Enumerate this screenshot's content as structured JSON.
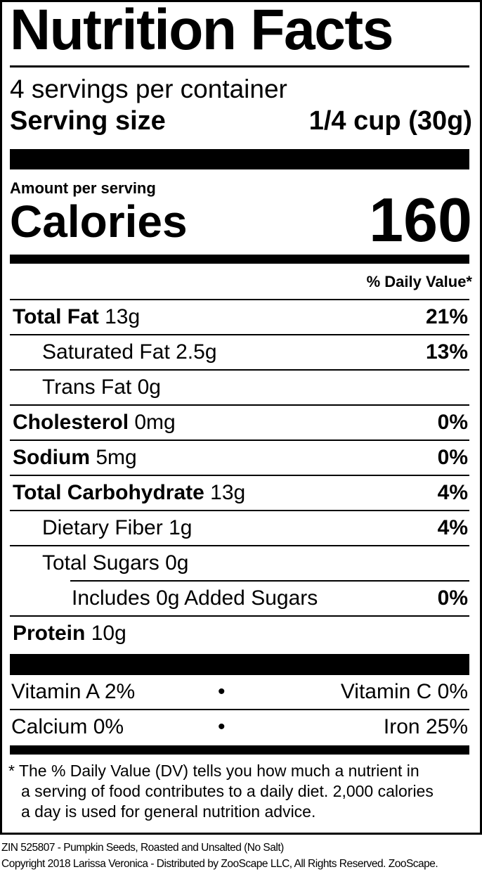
{
  "title": "Nutrition Facts",
  "servings_per_container": "4 servings per container",
  "serving_size": {
    "label": "Serving size",
    "value": "1/4 cup (30g)"
  },
  "amount_per_serving": "Amount per serving",
  "calories": {
    "label": "Calories",
    "value": "160"
  },
  "daily_value_header": "% Daily Value*",
  "nutrients": [
    {
      "name": "Total Fat",
      "amount": "13g",
      "dv": "21%",
      "bold": true,
      "indent": 0
    },
    {
      "name": "Saturated Fat",
      "amount": "2.5g",
      "dv": "13%",
      "bold": false,
      "indent": 1
    },
    {
      "name": "Trans Fat",
      "amount": "0g",
      "dv": "",
      "bold": false,
      "indent": 1
    },
    {
      "name": "Cholesterol",
      "amount": "0mg",
      "dv": "0%",
      "bold": true,
      "indent": 0
    },
    {
      "name": "Sodium",
      "amount": "5mg",
      "dv": "0%",
      "bold": true,
      "indent": 0
    },
    {
      "name": "Total Carbohydrate",
      "amount": "13g",
      "dv": "4%",
      "bold": true,
      "indent": 0
    },
    {
      "name": "Dietary Fiber",
      "amount": "1g",
      "dv": "4%",
      "bold": false,
      "indent": 1
    },
    {
      "name": "Total Sugars",
      "amount": "0g",
      "dv": "",
      "bold": false,
      "indent": 1
    },
    {
      "name": "Includes 0g Added Sugars",
      "amount": "",
      "dv": "0%",
      "bold": false,
      "indent": 2
    },
    {
      "name": "Protein",
      "amount": "10g",
      "dv": "",
      "bold": true,
      "indent": 0
    }
  ],
  "vitamins": [
    {
      "left": "Vitamin A 2%",
      "sep": "•",
      "right": "Vitamin C 0%"
    },
    {
      "left": "Calcium 0%",
      "sep": "•",
      "right": "Iron 25%"
    }
  ],
  "footnote": [
    "* The % Daily Value (DV) tells you how much a nutrient in",
    "a serving of food contributes to a daily diet. 2,000 calories",
    "a day is used for general nutrition advice."
  ],
  "product_line": "ZIN 525807 - Pumpkin Seeds, Roasted and Unsalted (No Salt)",
  "copyright": "Copyright 2018 Larissa Veronica - Distributed by ZooScape LLC, All Rights Reserved. ZooScape."
}
